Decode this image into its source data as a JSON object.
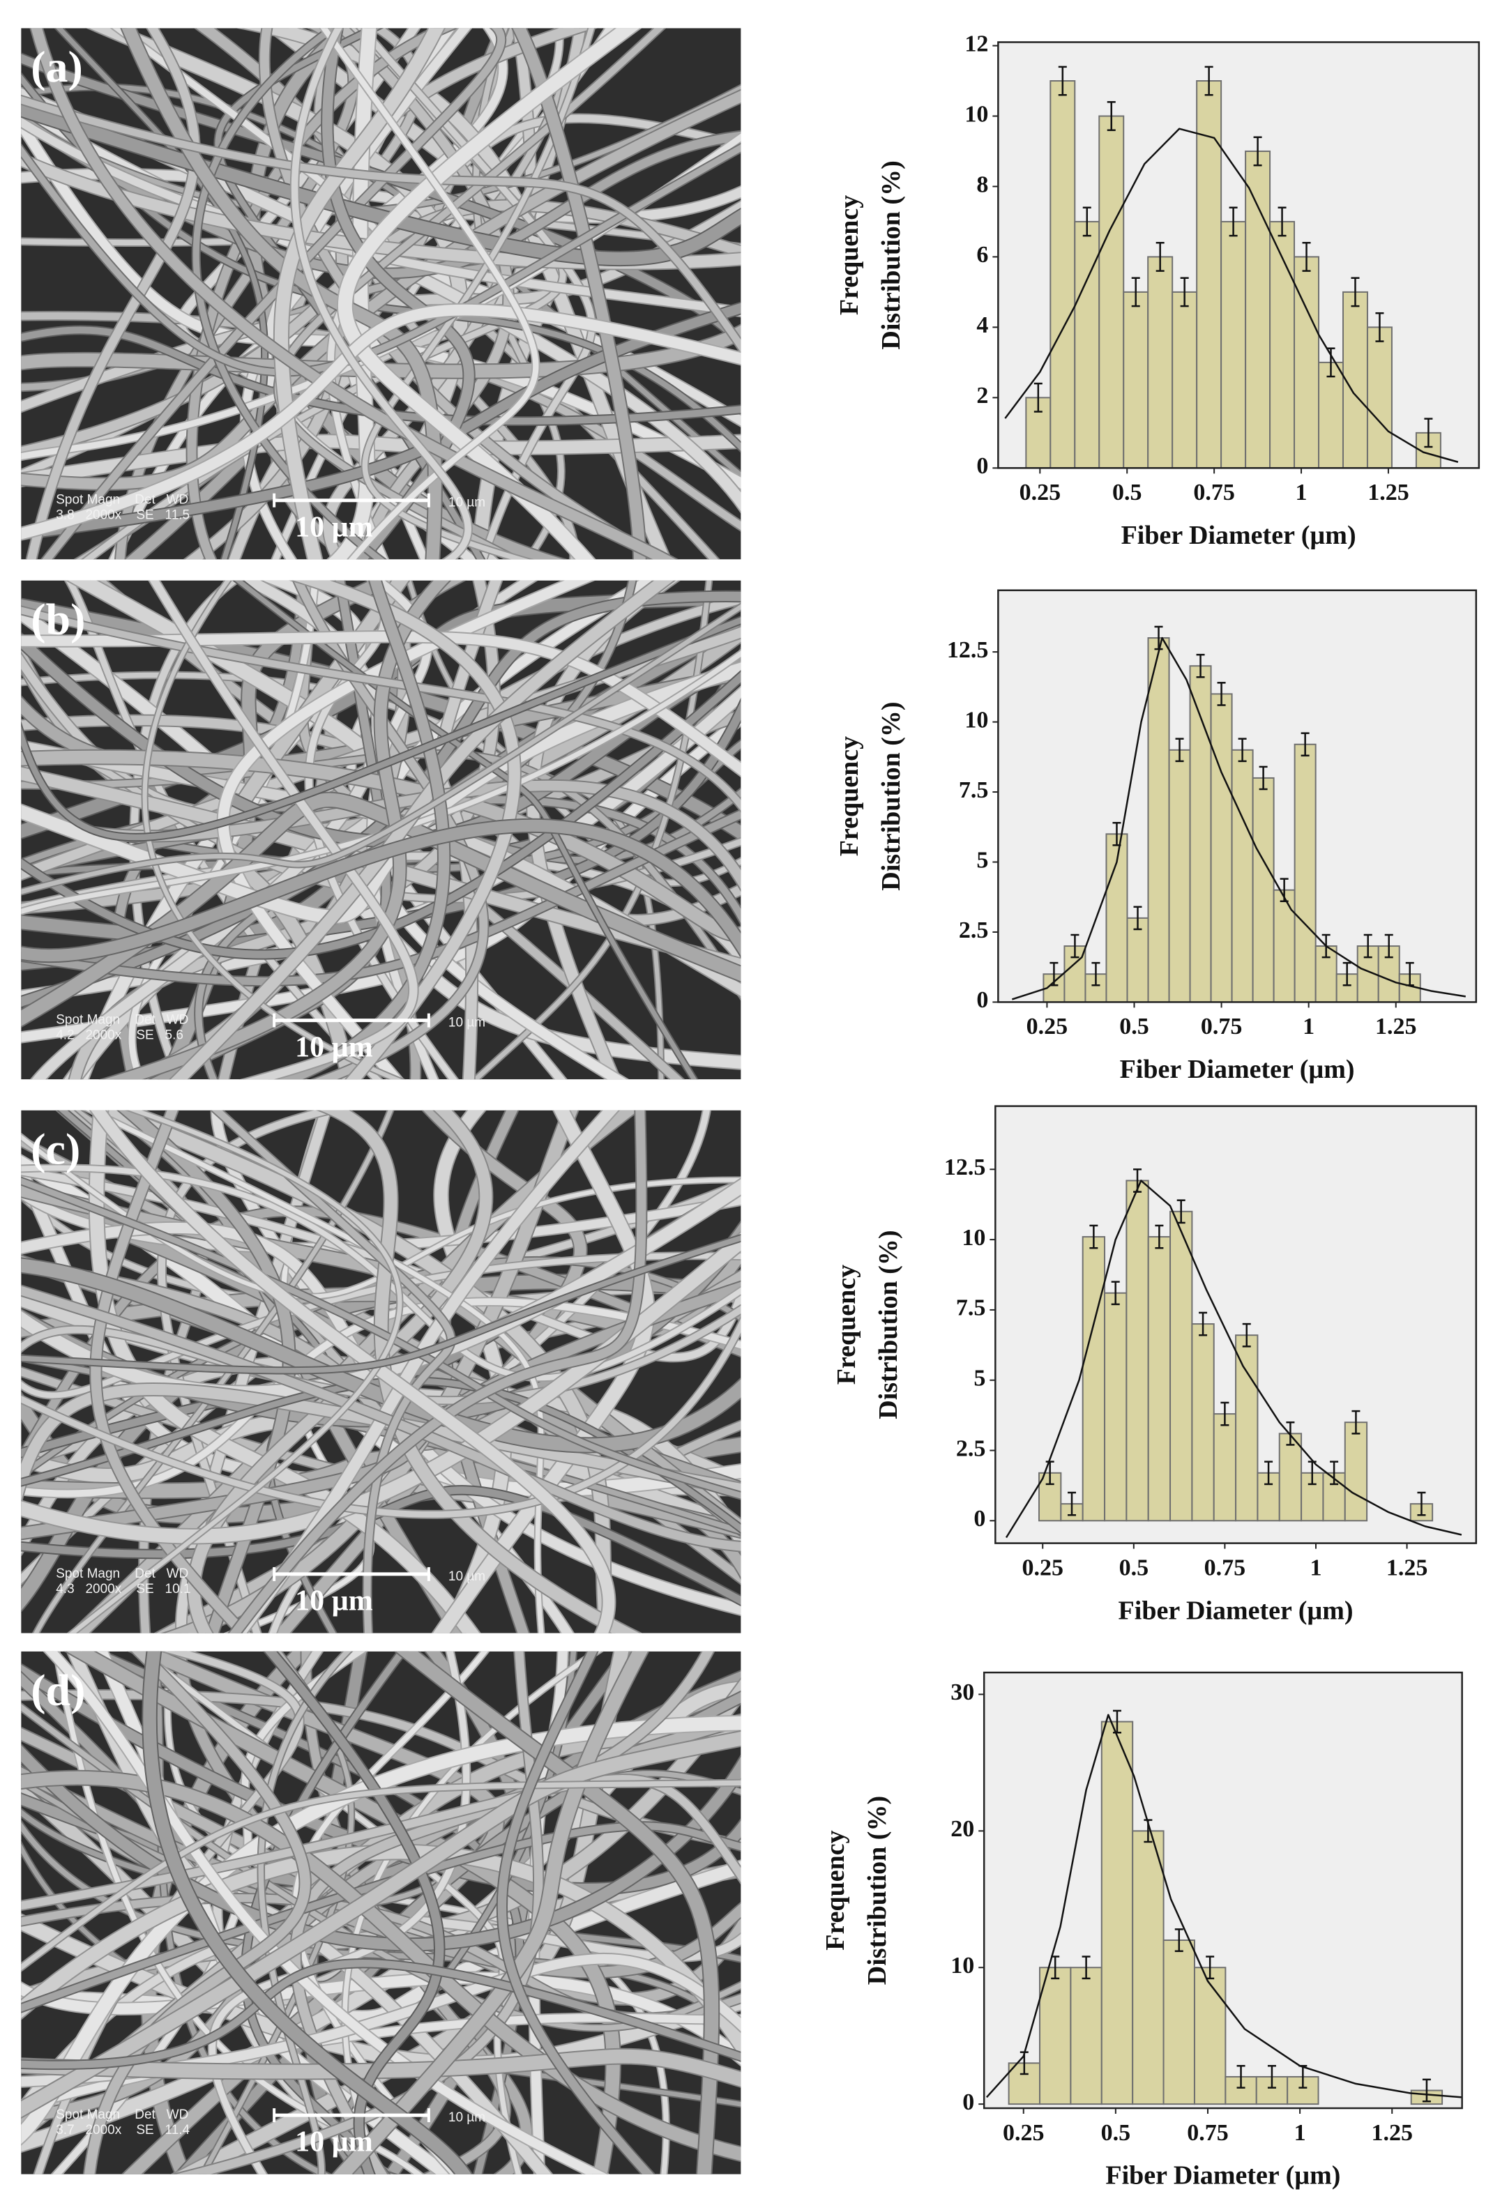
{
  "panels": [
    {
      "label": "(a)",
      "scale_text": "10 µm",
      "scale_small": "10 µm",
      "info": [
        "Spot Magn    Det   WD",
        "3.8   2000x    SE   11.5"
      ]
    },
    {
      "label": "(b)",
      "scale_text": "10 µm",
      "scale_small": "10 µm",
      "info": [
        "Spot Magn    Det   WD",
        "4.2   2000x    SE   5.6"
      ]
    },
    {
      "label": "(c)",
      "scale_text": "10 µm",
      "scale_small": "10 µm",
      "info": [
        "Spot Magn    Det   WD",
        "4.3   2000x    SE   10.1"
      ]
    },
    {
      "label": "(d)",
      "scale_text": "10 µm",
      "scale_small": "10 µm",
      "info": [
        "Spot Magn    Det   WD",
        "3.7   2000x    SE   11.4"
      ]
    }
  ],
  "chart_data": [
    {
      "type": "histogram",
      "xlabel": "Fiber Diameter (µm)",
      "ylabel": [
        "Frequency",
        "Distribution (%)"
      ],
      "bins": [
        0.21,
        0.28,
        0.35,
        0.42,
        0.49,
        0.56,
        0.63,
        0.7,
        0.77,
        0.84,
        0.91,
        0.98,
        1.05,
        1.12,
        1.19,
        1.26,
        1.33,
        1.4
      ],
      "values": [
        2,
        11,
        7,
        10,
        5,
        6,
        5,
        11,
        7,
        9,
        7,
        6,
        3,
        5,
        4,
        0,
        1
      ],
      "error": 0.4,
      "color": "#d9d4a2",
      "fit": {
        "x": [
          0.15,
          0.25,
          0.35,
          0.45,
          0.55,
          0.65,
          0.75,
          0.85,
          0.95,
          1.05,
          1.15,
          1.25,
          1.35,
          1.45
        ],
        "y": [
          1.41,
          2.73,
          4.6,
          6.75,
          8.64,
          9.64,
          9.38,
          7.96,
          5.88,
          3.79,
          2.13,
          1.04,
          0.45,
          0.17
        ]
      },
      "xlim": [
        0.13,
        1.51
      ],
      "ylim": [
        0,
        12.1
      ],
      "xticks": [
        0.25,
        0.5,
        0.75,
        1,
        1.25
      ],
      "yticks": [
        0,
        2,
        4,
        6,
        8,
        10,
        12
      ]
    },
    {
      "type": "histogram",
      "xlabel": "Fiber Diameter (µm)",
      "ylabel": [
        "Frequency",
        "Distribution (%)"
      ],
      "bins": [
        0.24,
        0.3,
        0.36,
        0.42,
        0.48,
        0.54,
        0.6,
        0.66,
        0.72,
        0.78,
        0.84,
        0.9,
        0.96,
        1.02,
        1.08,
        1.14,
        1.2,
        1.26,
        1.32
      ],
      "values": [
        1,
        2,
        1,
        6,
        3,
        13,
        9,
        12,
        11,
        9,
        8,
        4,
        9.2,
        2,
        1,
        2,
        2,
        1
      ],
      "error": 0.4,
      "color": "#d9d4a2",
      "fit": {
        "x": [
          0.15,
          0.25,
          0.35,
          0.45,
          0.52,
          0.58,
          0.65,
          0.75,
          0.85,
          0.95,
          1.05,
          1.15,
          1.25,
          1.35,
          1.45
        ],
        "y": [
          0.1,
          0.5,
          1.6,
          5,
          10,
          13,
          11.5,
          8.2,
          5.5,
          3.3,
          2,
          1.2,
          0.7,
          0.4,
          0.2
        ]
      },
      "xlim": [
        0.11,
        1.48
      ],
      "ylim": [
        0,
        14.7
      ],
      "xticks": [
        0.25,
        0.5,
        0.75,
        1,
        1.25
      ],
      "yticks": [
        0,
        2.5,
        5,
        7.5,
        10,
        12.5
      ]
    },
    {
      "type": "histogram",
      "xlabel": "Fiber Diameter (µm)",
      "ylabel": [
        "Frequency",
        "Distribution (%)"
      ],
      "bins": [
        0.24,
        0.3,
        0.36,
        0.42,
        0.48,
        0.54,
        0.6,
        0.66,
        0.72,
        0.78,
        0.84,
        0.9,
        0.96,
        1.02,
        1.08,
        1.14,
        1.2,
        1.26,
        1.32
      ],
      "values": [
        1.7,
        0.6,
        10.1,
        8.1,
        12.1,
        10.1,
        11,
        7,
        3.8,
        6.6,
        1.7,
        3.1,
        1.7,
        1.7,
        3.5,
        0,
        0,
        0.6
      ],
      "error": 0.4,
      "color": "#d9d4a2",
      "fit": {
        "x": [
          0.15,
          0.25,
          0.35,
          0.45,
          0.52,
          0.6,
          0.7,
          0.8,
          0.9,
          1.0,
          1.1,
          1.2,
          1.3,
          1.4
        ],
        "y": [
          -0.6,
          1.5,
          5,
          10,
          12.1,
          11.2,
          8.2,
          5.5,
          3.5,
          2,
          1,
          0.3,
          -0.2,
          -0.5
        ]
      },
      "xlim": [
        0.12,
        1.44
      ],
      "ylim": [
        -0.8,
        14.75
      ],
      "xticks": [
        0.25,
        0.5,
        0.75,
        1,
        1.25
      ],
      "yticks": [
        0,
        2.5,
        5,
        7.5,
        10,
        12.5
      ]
    },
    {
      "type": "histogram",
      "xlabel": "Fiber Diameter (µm)",
      "ylabel": [
        "Frequency",
        "Distribution (%)"
      ],
      "bins": [
        0.21,
        0.294,
        0.378,
        0.462,
        0.546,
        0.63,
        0.714,
        0.798,
        0.882,
        0.966,
        1.05,
        1.134,
        1.218,
        1.302,
        1.386
      ],
      "values": [
        3,
        10,
        10,
        28,
        20,
        12,
        10,
        2,
        2,
        2,
        0,
        0,
        0,
        1
      ],
      "error": 0.8,
      "color": "#d9d4a2",
      "fit": {
        "x": [
          0.15,
          0.25,
          0.35,
          0.42,
          0.48,
          0.55,
          0.65,
          0.75,
          0.85,
          1.0,
          1.15,
          1.3,
          1.44
        ],
        "y": [
          0.5,
          3.5,
          13,
          23,
          28.5,
          24,
          15,
          9,
          5.5,
          2.8,
          1.5,
          0.8,
          0.5
        ]
      },
      "xlim": [
        0.143,
        1.44
      ],
      "ylim": [
        -0.3,
        31.6
      ],
      "xticks": [
        0.25,
        0.5,
        0.75,
        1,
        1.25
      ],
      "yticks": [
        0,
        10,
        20,
        30
      ]
    }
  ]
}
